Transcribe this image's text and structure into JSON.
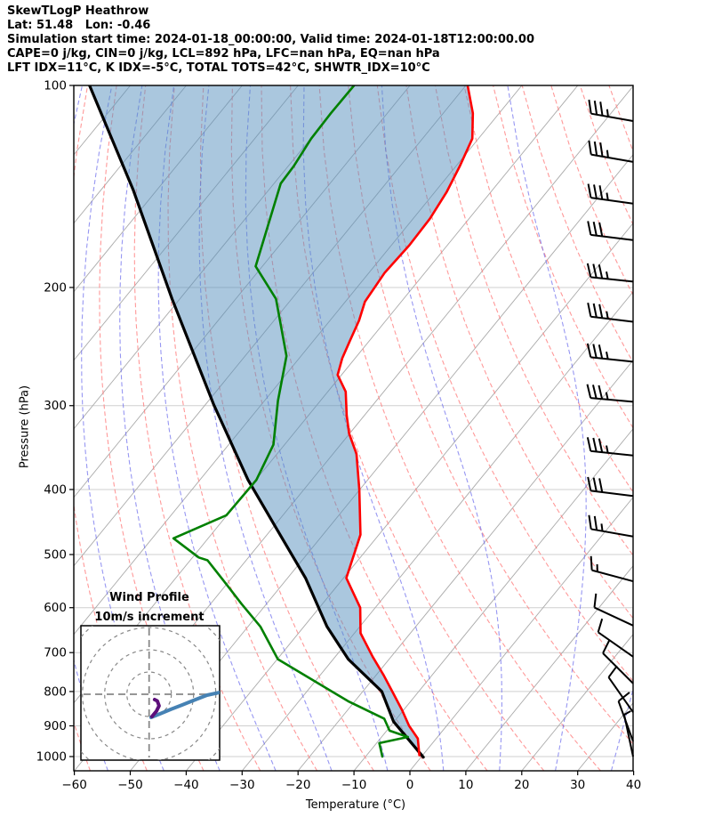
{
  "header": {
    "line1": "SkewTLogP Heathrow",
    "line2": "Lat: 51.48   Lon: -0.46",
    "line3": "Simulation start time: 2024-01-18_00:00:00, Valid time: 2024-01-18T12:00:00.00",
    "line4": "CAPE=0 j/kg, CIN=0 j/kg, LCL=892 hPa, LFC=nan hPa, EQ=nan hPa",
    "line5": "LFT IDX=11°C, K IDX=-5°C, TOTAL TOTS=42°C, SHWTR_IDX=10°C"
  },
  "axis": {
    "xlabel": "Temperature (°C)",
    "ylabel": "Pressure (hPa)"
  },
  "chart_data": {
    "type": "line",
    "subtype": "skewT-logP",
    "xlabel": "Temperature (°C)",
    "ylabel": "Pressure (hPa)",
    "x_ticks": [
      -60,
      -50,
      -40,
      -30,
      -20,
      -10,
      0,
      10,
      20,
      30,
      40
    ],
    "y_ticks": [
      100,
      200,
      300,
      400,
      500,
      600,
      700,
      800,
      900,
      1000
    ],
    "xlim": [
      -60,
      40
    ],
    "plim": [
      100,
      1050
    ],
    "grid": "on",
    "isotherm_step": 10,
    "isotherm_range": [
      -160,
      40
    ],
    "dry_adiabats_thetaK": {
      "start": 213,
      "end": 523,
      "step": 10
    },
    "moist_adiabats_startC": {
      "start": -84,
      "end": 36,
      "step": 10
    },
    "series": [
      {
        "name": "temperature",
        "color": "#ff0000",
        "points_p_T": [
          [
            100,
            -89.7
          ],
          [
            110,
            -84.7
          ],
          [
            120,
            -81.1
          ],
          [
            132,
            -79.3
          ],
          [
            144,
            -77.9
          ],
          [
            158,
            -77.0
          ],
          [
            173,
            -76.8
          ],
          [
            190,
            -77.2
          ],
          [
            210,
            -76.5
          ],
          [
            224,
            -74.8
          ],
          [
            240,
            -73.5
          ],
          [
            255,
            -72.3
          ],
          [
            270,
            -70.7
          ],
          [
            286,
            -66.8
          ],
          [
            310,
            -63.2
          ],
          [
            330,
            -60.1
          ],
          [
            354,
            -55.8
          ],
          [
            400,
            -50.1
          ],
          [
            467,
            -43.3
          ],
          [
            542,
            -39.5
          ],
          [
            600,
            -32.7
          ],
          [
            655,
            -28.9
          ],
          [
            710,
            -23.3
          ],
          [
            757,
            -18.6
          ],
          [
            806,
            -14.2
          ],
          [
            852,
            -10.3
          ],
          [
            900,
            -6.7
          ],
          [
            940,
            -3.3
          ],
          [
            995,
            -0.6
          ]
        ]
      },
      {
        "name": "dewpoint",
        "color": "#008000",
        "points_p_T": [
          [
            100,
            -110.0
          ],
          [
            110,
            -110.1
          ],
          [
            120,
            -109.9
          ],
          [
            132,
            -109.0
          ],
          [
            140,
            -108.8
          ],
          [
            186,
            -101.2
          ],
          [
            208,
            -92.8
          ],
          [
            253,
            -82.6
          ],
          [
            295,
            -77.6
          ],
          [
            343,
            -72.0
          ],
          [
            387,
            -69.9
          ],
          [
            437,
            -70.1
          ],
          [
            473,
            -76.2
          ],
          [
            505,
            -68.9
          ],
          [
            510,
            -66.9
          ],
          [
            546,
            -61.2
          ],
          [
            592,
            -54.5
          ],
          [
            640,
            -47.8
          ],
          [
            716,
            -39.9
          ],
          [
            827,
            -21.2
          ],
          [
            878,
            -12.2
          ],
          [
            915,
            -9.5
          ],
          [
            935,
            -5.3
          ],
          [
            955,
            -9.5
          ],
          [
            1000,
            -7.0
          ]
        ]
      },
      {
        "name": "parcel",
        "color": "#000000",
        "points_p_T": [
          [
            1002,
            0.4
          ],
          [
            887,
            -10.1
          ],
          [
            800,
            -16.6
          ],
          [
            716,
            -27.3
          ],
          [
            640,
            -35.9
          ],
          [
            542,
            -46.8
          ],
          [
            460,
            -58.8
          ],
          [
            387,
            -71.4
          ],
          [
            299,
            -88.5
          ],
          [
            208,
            -111.4
          ],
          [
            143,
            -134.3
          ],
          [
            100,
            -157.3
          ]
        ]
      }
    ],
    "shading": {
      "between": [
        "parcel",
        "temperature"
      ],
      "color": "rgba(85,143,189,0.5)"
    },
    "wind_barbs": [
      {
        "p": 113,
        "speed": 35,
        "dir": 280
      },
      {
        "p": 130,
        "speed": 35,
        "dir": 280
      },
      {
        "p": 150,
        "speed": 35,
        "dir": 278
      },
      {
        "p": 170,
        "speed": 33,
        "dir": 277
      },
      {
        "p": 196,
        "speed": 35,
        "dir": 276
      },
      {
        "p": 225,
        "speed": 38,
        "dir": 277
      },
      {
        "p": 258,
        "speed": 38,
        "dir": 276
      },
      {
        "p": 296,
        "speed": 35,
        "dir": 275
      },
      {
        "p": 356,
        "speed": 38,
        "dir": 276
      },
      {
        "p": 409,
        "speed": 30,
        "dir": 277
      },
      {
        "p": 470,
        "speed": 25,
        "dir": 280
      },
      {
        "p": 548,
        "speed": 15,
        "dir": 285
      },
      {
        "p": 638,
        "speed": 12,
        "dir": 295
      },
      {
        "p": 710,
        "speed": 10,
        "dir": 305
      },
      {
        "p": 778,
        "speed": 10,
        "dir": 315
      },
      {
        "p": 859,
        "speed": 10,
        "dir": 325
      },
      {
        "p": 949,
        "speed": 10,
        "dir": 340
      },
      {
        "p": 1000,
        "speed": 8,
        "dir": 348
      }
    ],
    "hodograph": {
      "title_line1": "Wind Profile",
      "title_line2": "10m/s increment",
      "ring_interval_ms": 10,
      "rings_ms": [
        10,
        20,
        30,
        40
      ],
      "trace_upper_uv": [
        [
          0.9,
          -10.4
        ],
        [
          4.9,
          -8.8
        ],
        [
          9.7,
          -6.8
        ],
        [
          14.9,
          -4.8
        ],
        [
          20.9,
          -2.4
        ],
        [
          26.1,
          -0.4
        ],
        [
          31.7,
          0.8
        ]
      ],
      "trace_lower_uv": [
        [
          1.3,
          -10.0
        ],
        [
          3.3,
          -7.6
        ],
        [
          4.5,
          -5.2
        ],
        [
          3.7,
          -3.0
        ],
        [
          2.5,
          -2.4
        ]
      ],
      "trace_upper_color": "#4682b4",
      "trace_lower_color": "#5c0f7a",
      "ring_color": "#888888"
    },
    "colors": {
      "temperature": "#ff0000",
      "dewpoint": "#008000",
      "parcel": "#000000",
      "cape_shading": "rgba(85,143,189,0.5)",
      "dry_adiabat": "#ff8080",
      "moist_adiabat": "#6b6bec",
      "isotherm": "#aaaaaa",
      "pressure_grid": "#cfcfcf",
      "axis": "#000000"
    }
  }
}
